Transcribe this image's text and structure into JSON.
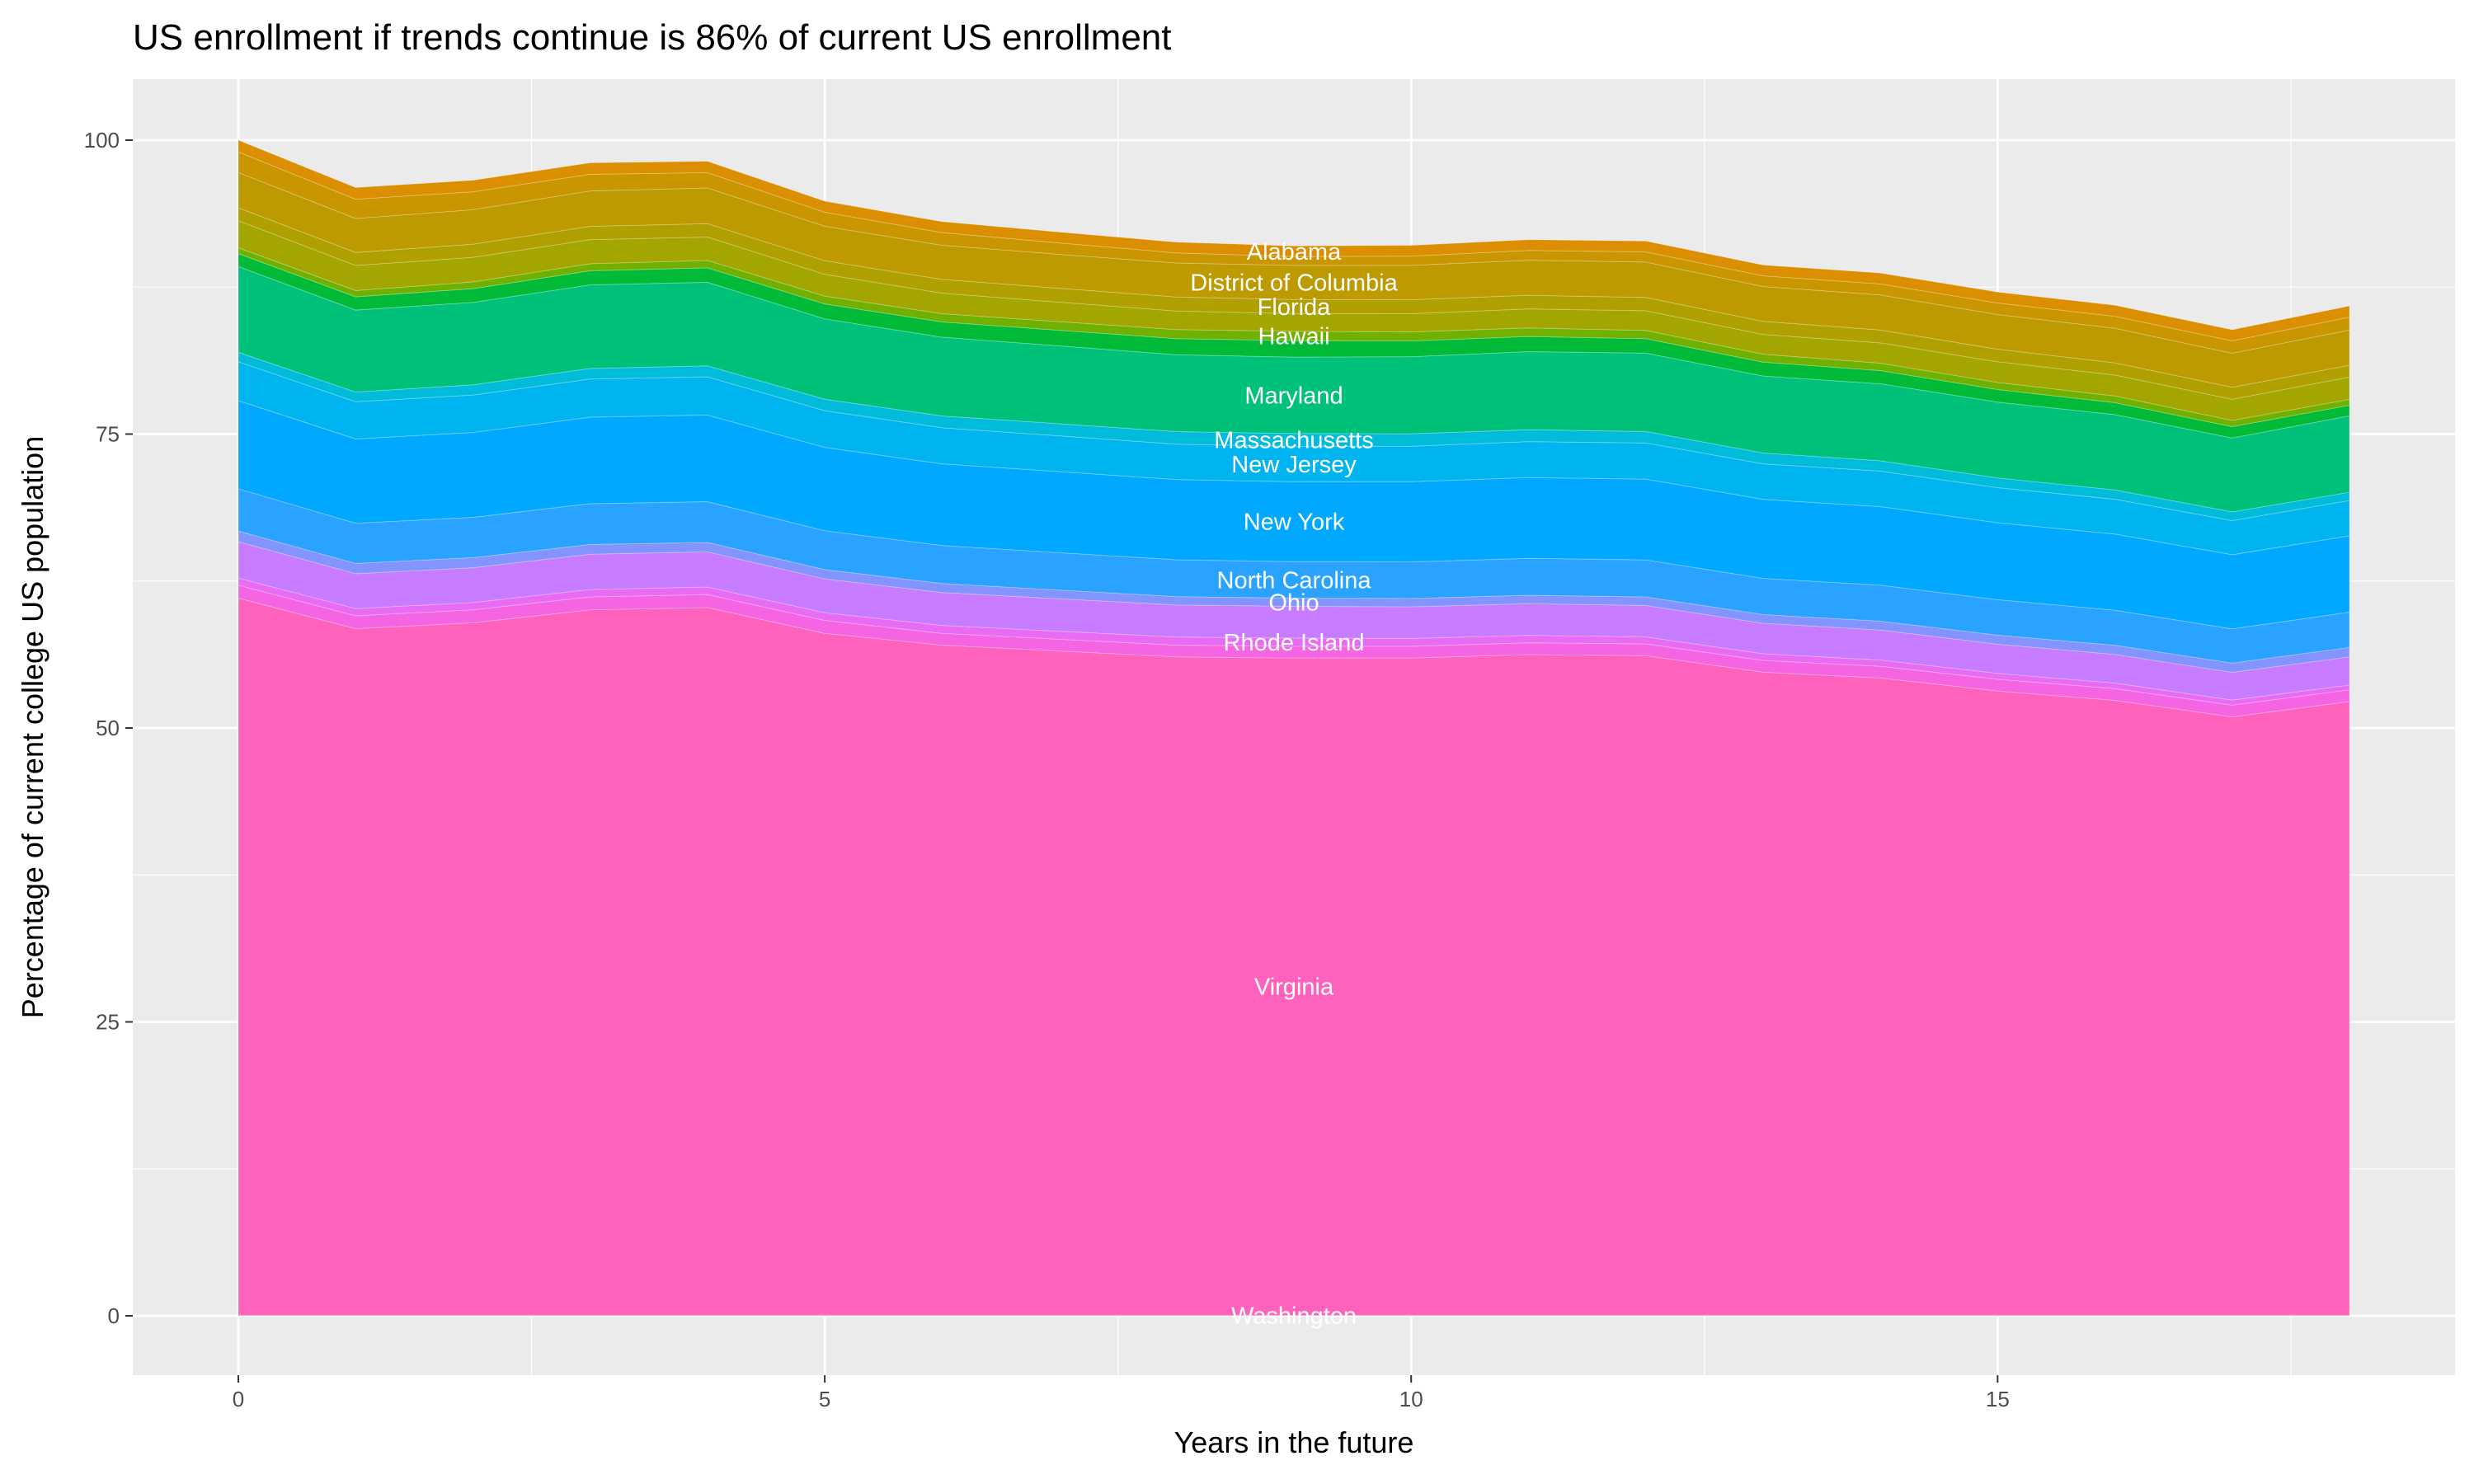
{
  "chart_data": {
    "type": "area",
    "stacked": true,
    "title": "US enrollment if trends continue is 86% of current US enrollment",
    "xlabel": "Years in the future",
    "ylabel": "Percentage of current college US population",
    "xlim": [
      -0.9,
      19.4
    ],
    "ylim": [
      -5,
      105
    ],
    "x_ticks": [
      0,
      5,
      10,
      15
    ],
    "y_ticks": [
      0,
      25,
      50,
      75,
      100
    ],
    "x_tick_labels": [
      "0",
      "5",
      "10",
      "15"
    ],
    "y_tick_labels": [
      "0",
      "25",
      "50",
      "75",
      "100"
    ],
    "grid": true,
    "legend": "none",
    "label_x": 9,
    "background": "#EBEBEB",
    "x": [
      0,
      1,
      2,
      3,
      4,
      5,
      6,
      7,
      8,
      9,
      10,
      11,
      12,
      13,
      14,
      15,
      16,
      17,
      18
    ],
    "series": [
      {
        "name": "Washington",
        "color": "#FF6C91",
        "values": [
          0.05,
          0.05,
          0.05,
          0.05,
          0.05,
          0.05,
          0.05,
          0.05,
          0.05,
          0.05,
          0.05,
          0.05,
          0.05,
          0.05,
          0.05,
          0.05,
          0.05,
          0.05,
          0.05
        ]
      },
      {
        "name": "Virginia",
        "color": "#FF62BC",
        "values": [
          61.0,
          58.4,
          58.9,
          60.0,
          60.2,
          58.0,
          57.0,
          56.5,
          56.0,
          55.9,
          55.9,
          56.2,
          56.1,
          54.7,
          54.2,
          53.1,
          52.3,
          50.9,
          52.2
        ]
      },
      {
        "name": "",
        "color": "#F564E3",
        "values": [
          1.1,
          1.1,
          1.1,
          1.1,
          1.1,
          1.1,
          1.0,
          1.0,
          1.0,
          1.0,
          1.0,
          1.0,
          1.0,
          1.0,
          1.0,
          1.0,
          1.0,
          1.0,
          1.0
        ]
      },
      {
        "name": "Rhode Island",
        "color": "#E76BF3",
        "values": [
          0.6,
          0.61,
          0.62,
          0.63,
          0.64,
          0.66,
          0.67,
          0.68,
          0.69,
          0.7,
          0.67,
          0.63,
          0.6,
          0.57,
          0.53,
          0.5,
          0.47,
          0.43,
          0.4
        ]
      },
      {
        "name": "",
        "color": "#C77CFF",
        "values": [
          3.1,
          2.96,
          2.96,
          3.0,
          2.99,
          2.87,
          2.8,
          2.76,
          2.72,
          2.7,
          2.69,
          2.69,
          2.67,
          2.59,
          2.55,
          2.48,
          2.44,
          2.35,
          2.4
        ]
      },
      {
        "name": "Ohio",
        "color": "#8494FF",
        "values": [
          0.9,
          0.88,
          0.86,
          0.83,
          0.81,
          0.79,
          0.77,
          0.74,
          0.72,
          0.7,
          0.71,
          0.72,
          0.73,
          0.74,
          0.76,
          0.77,
          0.78,
          0.79,
          0.8
        ]
      },
      {
        "name": "North Carolina",
        "color": "#29A3FF",
        "values": [
          3.6,
          3.42,
          3.43,
          3.47,
          3.46,
          3.31,
          3.23,
          3.18,
          3.13,
          3.1,
          3.11,
          3.14,
          3.15,
          3.08,
          3.06,
          3.01,
          2.98,
          2.91,
          3.0
        ]
      },
      {
        "name": "New York",
        "color": "#00A9FF",
        "values": [
          7.5,
          7.17,
          7.22,
          7.36,
          7.37,
          7.09,
          6.95,
          6.9,
          6.82,
          6.8,
          6.82,
          6.87,
          6.87,
          6.72,
          6.68,
          6.55,
          6.48,
          6.31,
          6.5
        ]
      },
      {
        "name": "New Jersey",
        "color": "#00B4EF",
        "values": [
          3.3,
          3.16,
          3.18,
          3.24,
          3.25,
          3.12,
          3.07,
          3.04,
          3.01,
          3.0,
          3.02,
          3.06,
          3.08,
          3.02,
          3.02,
          2.98,
          2.96,
          2.9,
          3.0
        ]
      },
      {
        "name": "Massachusetts",
        "color": "#00BBDA",
        "values": [
          0.8,
          0.83,
          0.87,
          0.9,
          0.93,
          0.97,
          1.0,
          1.03,
          1.07,
          1.1,
          1.06,
          1.01,
          0.97,
          0.92,
          0.88,
          0.83,
          0.79,
          0.74,
          0.7
        ]
      },
      {
        "name": "Maryland",
        "color": "#00C17A",
        "values": [
          7.3,
          6.97,
          7.01,
          7.11,
          7.11,
          6.84,
          6.7,
          6.62,
          6.54,
          6.5,
          6.55,
          6.64,
          6.67,
          6.55,
          6.55,
          6.45,
          6.41,
          6.29,
          6.5
        ]
      },
      {
        "name": "",
        "color": "#00BA38",
        "values": [
          1.1,
          1.13,
          1.17,
          1.2,
          1.23,
          1.27,
          1.3,
          1.33,
          1.37,
          1.4,
          1.34,
          1.29,
          1.23,
          1.18,
          1.12,
          1.07,
          1.01,
          0.96,
          0.9
        ]
      },
      {
        "name": "Hawaii",
        "color": "#6FB000",
        "values": [
          0.5,
          0.53,
          0.57,
          0.6,
          0.63,
          0.67,
          0.7,
          0.73,
          0.77,
          0.8,
          0.77,
          0.73,
          0.7,
          0.67,
          0.63,
          0.6,
          0.57,
          0.53,
          0.5
        ]
      },
      {
        "name": "",
        "color": "#A3A500",
        "values": [
          2.3,
          2.13,
          2.09,
          2.05,
          1.99,
          1.85,
          1.75,
          1.66,
          1.58,
          1.5,
          1.55,
          1.62,
          1.67,
          1.69,
          1.73,
          1.76,
          1.78,
          1.8,
          1.9
        ]
      },
      {
        "name": "Florida",
        "color": "#B09F00",
        "values": [
          1.1,
          1.11,
          1.12,
          1.13,
          1.14,
          1.16,
          1.17,
          1.18,
          1.19,
          1.2,
          1.18,
          1.16,
          1.13,
          1.11,
          1.09,
          1.07,
          1.04,
          1.02,
          1.0
        ]
      },
      {
        "name": "District of Columbia",
        "color": "#BD9A00",
        "values": [
          3.0,
          2.89,
          2.93,
          3.01,
          3.03,
          2.93,
          2.9,
          2.89,
          2.89,
          2.9,
          2.93,
          2.98,
          3.01,
          2.96,
          2.98,
          2.95,
          2.94,
          2.89,
          3.0
        ]
      },
      {
        "name": "",
        "color": "#C99600",
        "values": [
          1.75,
          1.64,
          1.53,
          1.42,
          1.31,
          1.19,
          1.08,
          0.97,
          0.86,
          0.75,
          0.79,
          0.83,
          0.87,
          0.91,
          0.94,
          0.98,
          1.02,
          1.06,
          1.1
        ]
      },
      {
        "name": "Alabama",
        "color": "#DB8E00",
        "values": [
          1.0,
          0.99,
          0.98,
          0.97,
          0.96,
          0.94,
          0.93,
          0.92,
          0.91,
          0.9,
          0.91,
          0.91,
          0.92,
          0.92,
          0.93,
          0.93,
          0.94,
          0.94,
          0.95
        ]
      }
    ]
  }
}
